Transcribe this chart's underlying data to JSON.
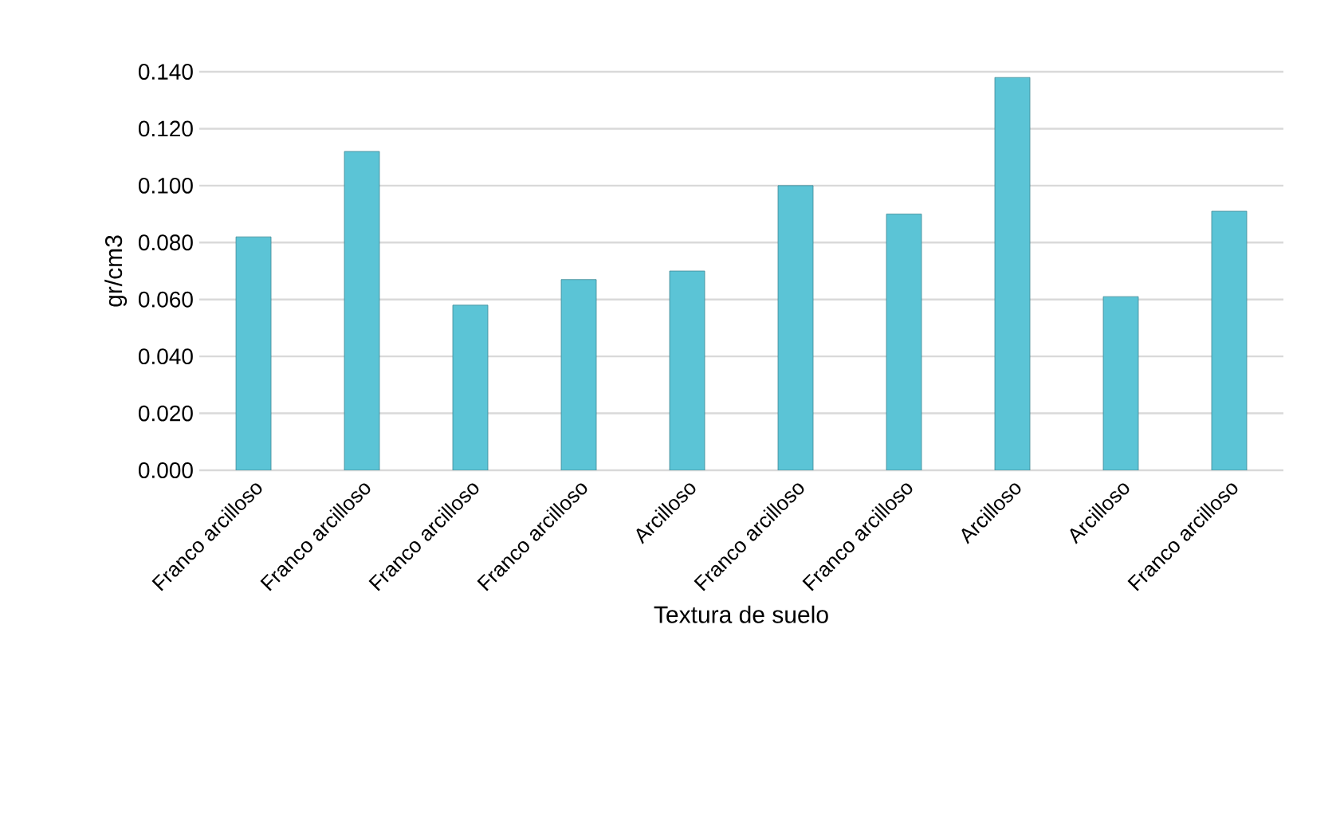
{
  "chart_data": {
    "type": "bar",
    "xlabel": "Textura de suelo",
    "ylabel": "gr/cm3",
    "categories": [
      "Franco arcilloso",
      "Franco arcilloso",
      "Franco arcilloso",
      "Franco arcilloso",
      "Arcilloso",
      "Franco arcilloso",
      "Franco arcilloso",
      "Arcilloso",
      "Arcilloso",
      "Franco arcilloso"
    ],
    "values": [
      0.082,
      0.112,
      0.058,
      0.067,
      0.07,
      0.1,
      0.09,
      0.138,
      0.061,
      0.091
    ],
    "color": "#5bc4d6",
    "ylim": [
      0,
      0.14
    ],
    "yticks": [
      {
        "value": 0,
        "label": "0.000"
      },
      {
        "value": 0.02,
        "label": "0.020"
      },
      {
        "value": 0.04,
        "label": "0.040"
      },
      {
        "value": 0.06,
        "label": "0.060"
      },
      {
        "value": 0.08,
        "label": "0.080"
      },
      {
        "value": 0.1,
        "label": "0.100"
      },
      {
        "value": 0.12,
        "label": "0.120"
      },
      {
        "value": 0.14,
        "label": "0.140"
      }
    ],
    "grid": "y"
  }
}
